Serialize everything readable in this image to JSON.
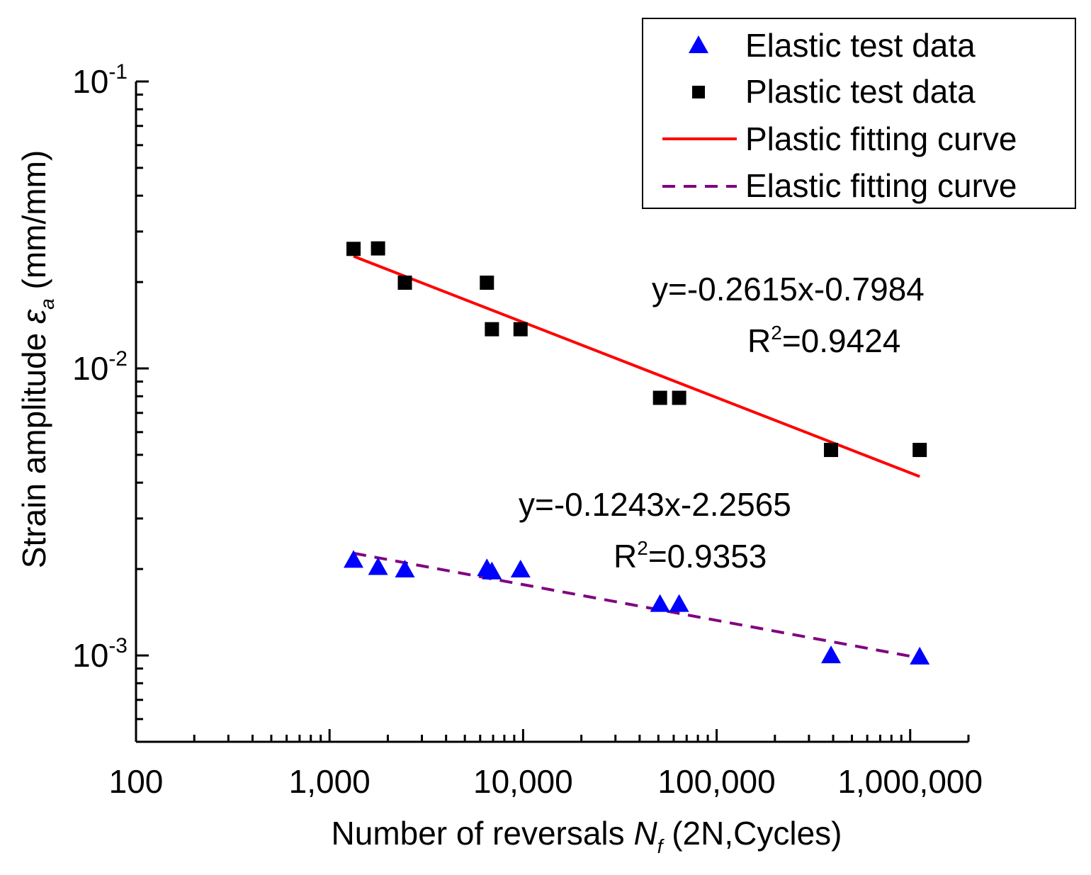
{
  "chart_data": {
    "type": "scatter",
    "x_scale": "log",
    "y_scale": "log",
    "xlim": [
      100,
      2000000
    ],
    "ylim": [
      0.0005,
      0.1
    ],
    "x_ticks": [
      {
        "value": 100,
        "label": "100"
      },
      {
        "value": 1000,
        "label": "1,000"
      },
      {
        "value": 10000,
        "label": "10,000"
      },
      {
        "value": 100000,
        "label": "100,000"
      },
      {
        "value": 1000000,
        "label": "1,000,000"
      }
    ],
    "y_ticks": [
      {
        "value": 0.001,
        "base": "10",
        "exp": "-3"
      },
      {
        "value": 0.01,
        "base": "10",
        "exp": "-2"
      },
      {
        "value": 0.1,
        "base": "10",
        "exp": "-1"
      }
    ],
    "xlabel": {
      "main": "Number of reversals ",
      "var": "N",
      "sub": "f",
      "rest": " (2N,Cycles)"
    },
    "ylabel": {
      "main": "Strain amplitude ",
      "var": "ε",
      "sub": "a",
      "rest": " (mm/mm)"
    },
    "grid": false,
    "legend_position": "top-right",
    "series": [
      {
        "name": "Elastic test data",
        "kind": "marker",
        "marker": "triangle",
        "color": "#0000ff",
        "x": [
          1330,
          1780,
          2450,
          6500,
          6900,
          9700,
          51000,
          64000,
          390000,
          1120000
        ],
        "y": [
          0.00215,
          0.00203,
          0.00199,
          0.00201,
          0.00196,
          0.00199,
          0.00151,
          0.00151,
          0.001,
          0.00099
        ]
      },
      {
        "name": "Plastic test data",
        "kind": "marker",
        "marker": "square",
        "color": "#000000",
        "x": [
          1330,
          1780,
          2450,
          6500,
          6900,
          9700,
          51000,
          64000,
          390000,
          1120000
        ],
        "y": [
          0.0261,
          0.0262,
          0.0199,
          0.0199,
          0.0137,
          0.0137,
          0.0079,
          0.0079,
          0.0052,
          0.0052
        ]
      },
      {
        "name": "Plastic fitting curve",
        "kind": "line",
        "dash": "solid",
        "color": "#ff0000",
        "x": [
          1330,
          1120000
        ],
        "y": [
          0.0246,
          0.0042
        ]
      },
      {
        "name": "Elastic fitting curve",
        "kind": "line",
        "dash": "dashed",
        "color": "#800080",
        "x": [
          1330,
          1120000
        ],
        "y": [
          0.00227,
          0.00098
        ]
      }
    ],
    "annotations": [
      {
        "id": "plastic-eq",
        "eq": "y=-0.2615x-0.7984",
        "r_prefix": "R",
        "r_exp": "2",
        "r_value": "=0.9424"
      },
      {
        "id": "elastic-eq",
        "eq": "y=-0.1243x-2.2565",
        "r_prefix": "R",
        "r_exp": "2",
        "r_value": "=0.9353"
      }
    ]
  }
}
